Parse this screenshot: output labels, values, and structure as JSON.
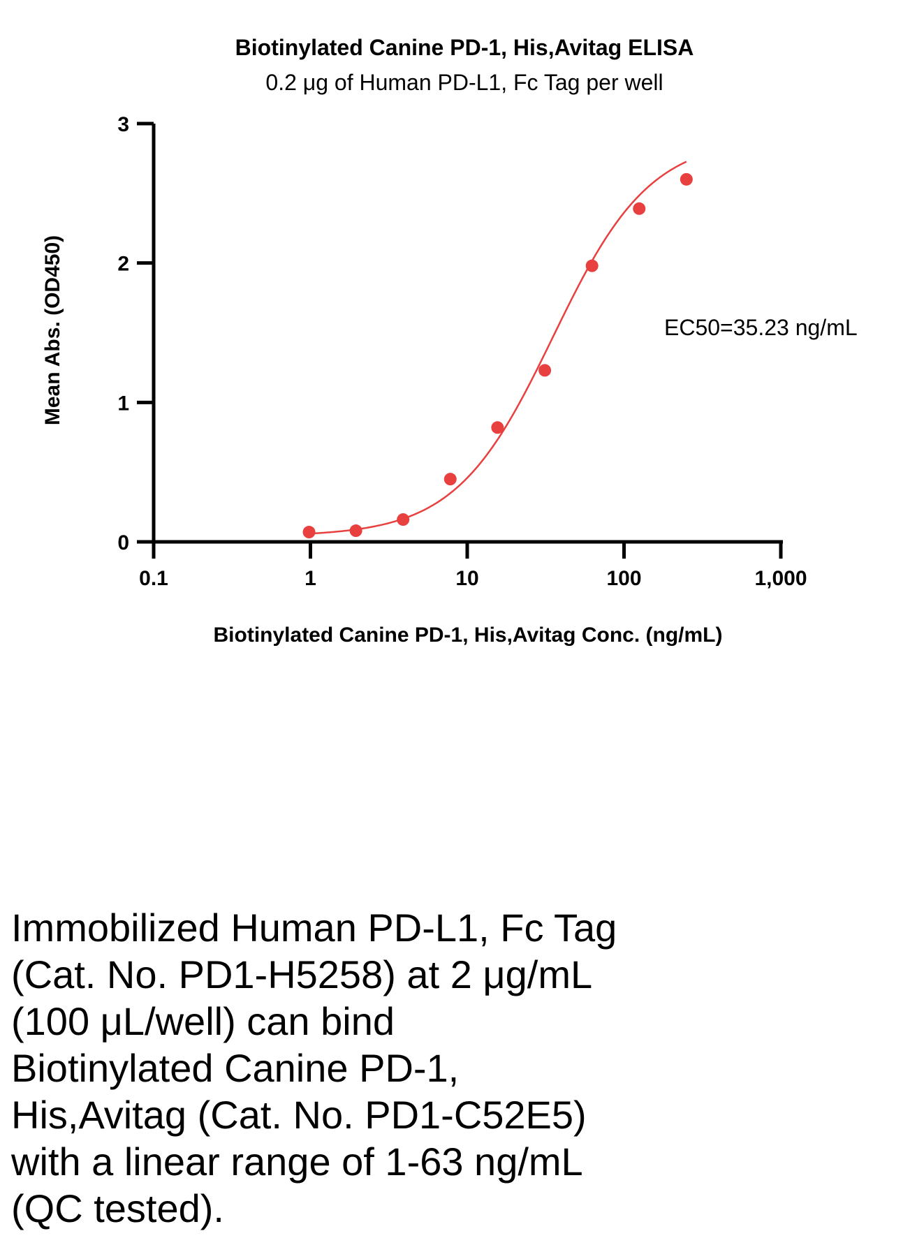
{
  "chart_data": {
    "type": "scatter",
    "title": "Biotinylated Canine PD-1, His,Avitag ELISA",
    "subtitle": "0.2 μg of Human PD-L1, Fc Tag per well",
    "xlabel": "Biotinylated Canine PD-1, His,Avitag Conc. (ng/mL)",
    "ylabel": "Mean Abs. (OD450)",
    "xscale": "log",
    "xlim": [
      0.1,
      1000
    ],
    "ylim": [
      0,
      3
    ],
    "xticks": [
      0.1,
      1,
      10,
      100,
      1000
    ],
    "xtick_labels": [
      "0.1",
      "1",
      "10",
      "100",
      "1,000"
    ],
    "yticks": [
      0,
      1,
      2,
      3
    ],
    "ytick_labels": [
      "0",
      "1",
      "2",
      "3"
    ],
    "grid": false,
    "series": [
      {
        "color": "#e8403f",
        "x": [
          0.98,
          1.95,
          3.9,
          7.8,
          15.6,
          31.25,
          62.5,
          125,
          250
        ],
        "y": [
          0.07,
          0.08,
          0.16,
          0.45,
          0.82,
          1.23,
          1.98,
          2.39,
          2.6
        ]
      }
    ],
    "fit_curve": {
      "model": "4PL",
      "bottom": 0.04,
      "top": 2.9,
      "ec50": 35.23,
      "hill": 1.4,
      "x_range": [
        1,
        250
      ]
    },
    "annotation": "EC50=35.23 ng/mL"
  },
  "caption": "Immobilized Human PD-L1, Fc Tag\n(Cat. No. PD1-H5258) at 2 μg/mL\n(100 μL/well) can bind\nBiotinylated Canine PD-1,\nHis,Avitag (Cat. No. PD1-C52E5)\nwith a linear range of 1-63 ng/mL\n(QC tested)."
}
